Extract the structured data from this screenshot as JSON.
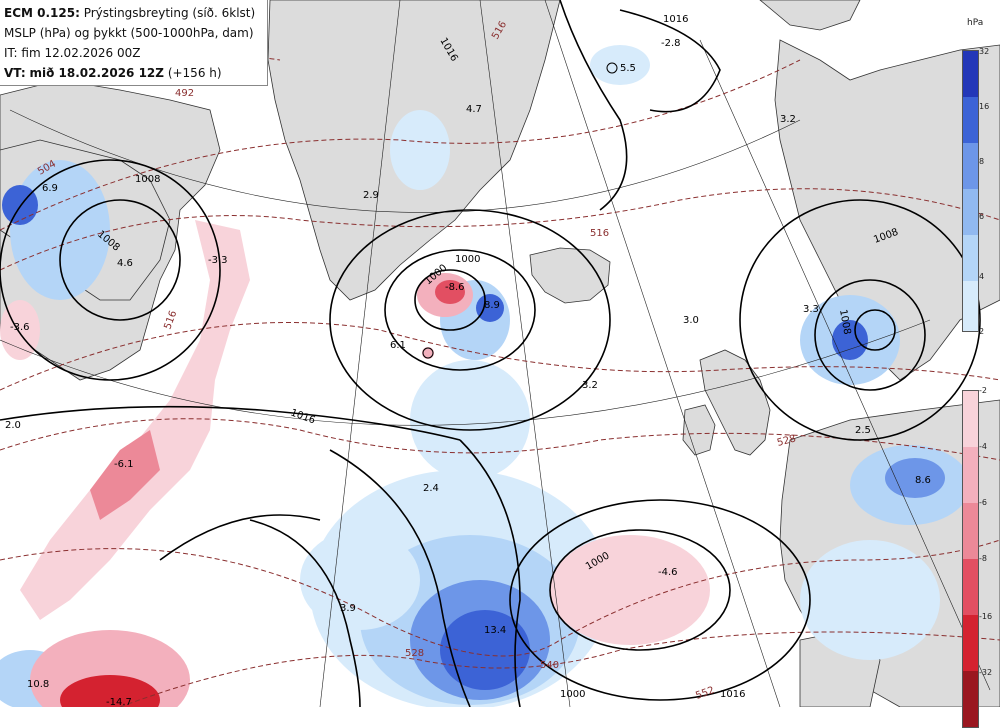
{
  "header": {
    "model": "ECM 0.125:",
    "product": "Prýstingsbreyting (síð. 6klst)",
    "line2": "MSLP (hPa) og þykkt (500-1000hPa, dam)",
    "line3": "IT: fim 12.02.2026 00Z",
    "vt_prefix": "VT:",
    "vt": "mið 18.02.2026 12Z",
    "lead": "(+156 h)"
  },
  "legend": {
    "unit": "hPa",
    "positive_ticks": [
      "32",
      "16",
      "8",
      "6",
      "4",
      "2"
    ],
    "negative_ticks": [
      "-2",
      "-4",
      "-6",
      "-8",
      "-16",
      "-32"
    ],
    "positive_colors": [
      "#2337b8",
      "#3c63d6",
      "#6d96e8",
      "#91b9f0",
      "#b4d5f7",
      "#d7ebfb"
    ],
    "negative_colors": [
      "#f8d3da",
      "#f3b0bd",
      "#ec8998",
      "#e24f62",
      "#d42230",
      "#9a1720"
    ]
  },
  "map": {
    "isobar_labels": [
      "1016",
      "1008",
      "1008",
      "1008",
      "1000",
      "1000",
      "1016",
      "1000",
      "1008",
      "1000",
      "1016",
      "1016"
    ],
    "thickness_labels": [
      "492",
      "504",
      "516",
      "516",
      "528",
      "528",
      "540",
      "552",
      "516"
    ],
    "change_labels": [
      "6.9",
      "4.6",
      "-3.3",
      "-3.6",
      "2.0",
      "-6.1",
      "2.9",
      "4.7",
      "-8.6",
      "8.9",
      "6.1",
      "3.2",
      "5.5",
      "-2.8",
      "3.2",
      "3.3",
      "3.0",
      "2.4",
      "3.9",
      "13.4",
      "-4.6",
      "2.5",
      "8.6",
      "10.8",
      "-14.7"
    ]
  }
}
